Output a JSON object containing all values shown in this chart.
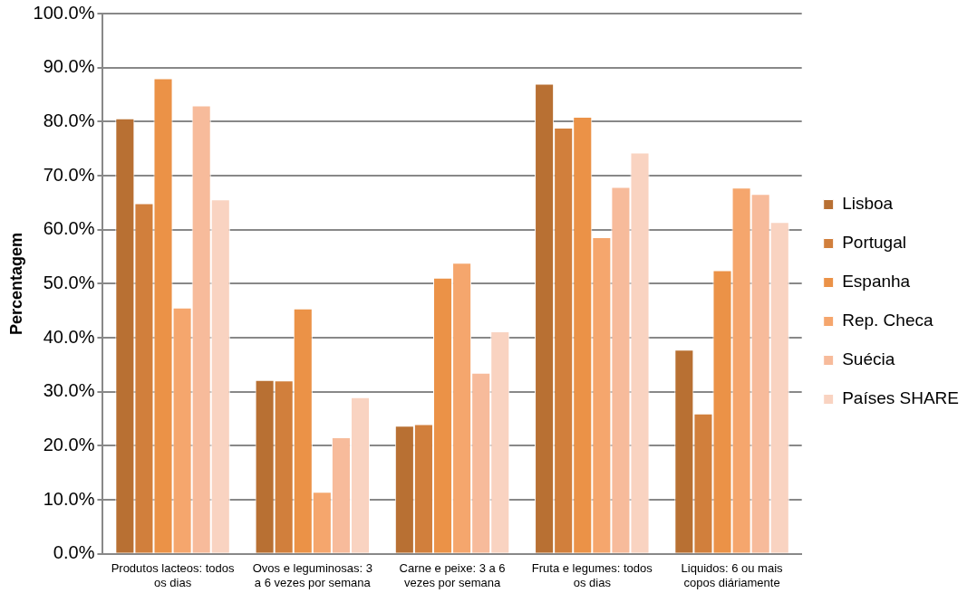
{
  "chart_data": {
    "type": "bar",
    "ylabel": "Percentagem",
    "categories": [
      "Produtos lacteos: todos os dias",
      "Ovos e leguminosas: 3 a 6 vezes por semana",
      "Carne e peixe: 3 a 6 vezes por semana",
      "Fruta e legumes: todos os dias",
      "Liquidos: 6 ou mais copos diáriamente"
    ],
    "series": [
      {
        "name": "Lisboa",
        "color": "#b87033",
        "values": [
          80.6,
          32.2,
          23.7,
          87.0,
          37.8
        ]
      },
      {
        "name": "Portugal",
        "color": "#d17f3c",
        "values": [
          64.9,
          32.1,
          24.0,
          78.9,
          26.0
        ]
      },
      {
        "name": "Espanha",
        "color": "#eb9247",
        "values": [
          88.0,
          45.4,
          51.1,
          80.9,
          52.5
        ]
      },
      {
        "name": "Rep. Checa",
        "color": "#f5a66d",
        "values": [
          45.6,
          11.5,
          53.9,
          58.6,
          67.8
        ]
      },
      {
        "name": "Suécia",
        "color": "#f7bb9b",
        "values": [
          83.0,
          21.6,
          33.5,
          67.9,
          66.6
        ]
      },
      {
        "name": "Países SHARE",
        "color": "#f9d3c1",
        "values": [
          65.6,
          29.0,
          41.2,
          74.3,
          61.4
        ]
      }
    ],
    "ylim": [
      0,
      100
    ],
    "yticks": [
      {
        "value": 0,
        "label": "0.0%"
      },
      {
        "value": 10,
        "label": "10.0%"
      },
      {
        "value": 20,
        "label": "20.0%"
      },
      {
        "value": 30,
        "label": "30.0%"
      },
      {
        "value": 40,
        "label": "40.0%"
      },
      {
        "value": 50,
        "label": "50.0%"
      },
      {
        "value": 60,
        "label": "60.0%"
      },
      {
        "value": 70,
        "label": "70.0%"
      },
      {
        "value": 80,
        "label": "80.0%"
      },
      {
        "value": 90,
        "label": "90.0%"
      },
      {
        "value": 100,
        "label": "100.0%"
      }
    ],
    "grid": "y",
    "legend": "right"
  }
}
